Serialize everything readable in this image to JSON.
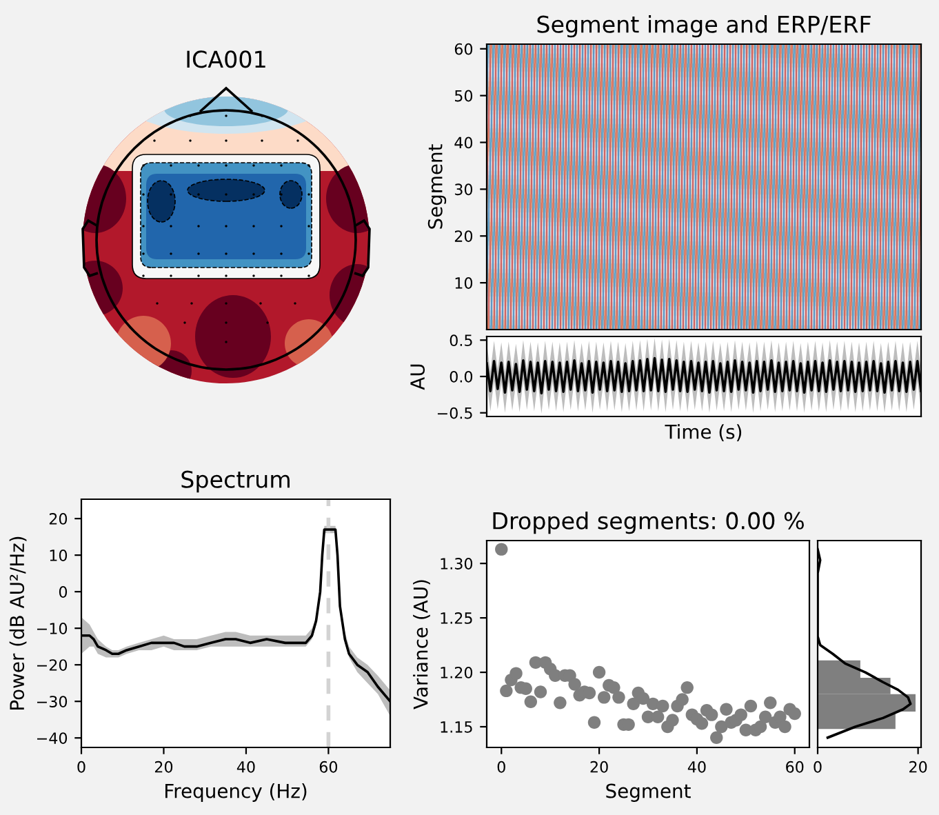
{
  "chart_data": [
    {
      "type": "other",
      "title": "ICA001"
    },
    {
      "type": "heatmap",
      "title": "Segment image and ERP/ERF",
      "ylabel": "Segment",
      "categories": [
        null
      ],
      "ylim": [
        0,
        61
      ],
      "yticks": [
        10,
        20,
        30,
        40,
        50,
        60
      ],
      "tick_labels": "y"
    },
    {
      "type": "line",
      "xlabel": "Time (s)",
      "ylabel": "AU",
      "tick_labels": "y",
      "categories": [
        null,
        null,
        null,
        null,
        null,
        null,
        null,
        null,
        null,
        null,
        null,
        null,
        null,
        null,
        null,
        null,
        null,
        null,
        null,
        null,
        null,
        null,
        null,
        null,
        null,
        null,
        null,
        null,
        null,
        null,
        null,
        null,
        null,
        null,
        null,
        null,
        null,
        null,
        null,
        null,
        null,
        null,
        null,
        null,
        null,
        null,
        null,
        null,
        null,
        null,
        null,
        null,
        null,
        null,
        null,
        null,
        null,
        null,
        null,
        null,
        null,
        null,
        null,
        null,
        null,
        null,
        null,
        null,
        null,
        null,
        null,
        null,
        null,
        null,
        null,
        null,
        null,
        null,
        null,
        null,
        null,
        null,
        null,
        null,
        null,
        null,
        null,
        null,
        null,
        null,
        null,
        null,
        null,
        null,
        null,
        null,
        null,
        null,
        null,
        null,
        null,
        null,
        null,
        null,
        null,
        null,
        null,
        null,
        null,
        null,
        null,
        null,
        null,
        null,
        null,
        null,
        null,
        null,
        null,
        null
      ],
      "ylim": [
        -0.55,
        0.55
      ],
      "yticks": [
        {
          "value": -0.5,
          "label": "−0.5"
        },
        {
          "value": 0,
          "label": "0.0"
        },
        0.5
      ],
      "series": [
        {
          "color": "#000000",
          "values": [
            0.18,
            -0.2,
            0.21,
            -0.17,
            0.19,
            -0.22,
            0.2,
            -0.19,
            0.17,
            -0.21,
            0.22,
            -0.18,
            0.2,
            -0.2,
            0.19,
            -0.23,
            0.21,
            -0.18,
            0.2,
            -0.2,
            0.19,
            -0.21,
            0.2,
            -0.18,
            0.22,
            -0.2,
            0.18,
            -0.19,
            0.21,
            -0.22,
            0.2,
            -0.18,
            0.19,
            -0.2,
            0.21,
            -0.19,
            0.2,
            -0.21,
            0.18,
            -0.2,
            0.21,
            -0.19,
            0.22,
            -0.2,
            0.24,
            -0.19,
            0.25,
            -0.2,
            0.23,
            -0.21,
            0.24,
            -0.18,
            0.22,
            -0.2,
            0.2,
            -0.21,
            0.21,
            -0.18,
            0.19,
            -0.2,
            0.2,
            -0.22,
            0.21,
            -0.19,
            0.18,
            -0.2,
            0.2,
            -0.21,
            0.22,
            -0.18,
            0.2,
            -0.19,
            0.19,
            -0.22,
            0.21,
            -0.2,
            0.2,
            -0.18,
            0.22,
            -0.21,
            0.19,
            -0.2,
            0.2,
            -0.19,
            0.21,
            -0.2,
            0.18,
            -0.22,
            0.2,
            -0.19,
            0.21,
            -0.2,
            0.19,
            -0.21,
            0.22,
            -0.18,
            0.2,
            -0.2,
            0.21,
            -0.19,
            0.2,
            -0.21,
            0.19,
            -0.2,
            0.2,
            -0.19,
            0.21,
            -0.2,
            0.18,
            -0.22,
            0.2,
            -0.19,
            0.21,
            -0.2,
            0.19,
            -0.21,
            0.2,
            -0.18,
            0.21,
            -0.2
          ],
          "upper": [
            0.46,
            0.07,
            0.49,
            0.1,
            0.47,
            0.05,
            0.48,
            0.08,
            0.45,
            0.06,
            0.5,
            0.09,
            0.48,
            0.07,
            0.47,
            0.04,
            0.49,
            0.09,
            0.48,
            0.07,
            0.47,
            0.06,
            0.48,
            0.09,
            0.5,
            0.07,
            0.46,
            0.08,
            0.49,
            0.05,
            0.48,
            0.09,
            0.47,
            0.07,
            0.49,
            0.08,
            0.48,
            0.06,
            0.46,
            0.07,
            0.49,
            0.08,
            0.5,
            0.07,
            0.52,
            0.08,
            0.53,
            0.07,
            0.51,
            0.06,
            0.52,
            0.09,
            0.5,
            0.07,
            0.48,
            0.06,
            0.49,
            0.09,
            0.47,
            0.07,
            0.48,
            0.05,
            0.49,
            0.08,
            0.46,
            0.07,
            0.48,
            0.06,
            0.5,
            0.09,
            0.48,
            0.08,
            0.47,
            0.05,
            0.49,
            0.07,
            0.48,
            0.09,
            0.5,
            0.06,
            0.47,
            0.07,
            0.48,
            0.08,
            0.49,
            0.07,
            0.46,
            0.05,
            0.48,
            0.08,
            0.49,
            0.07,
            0.47,
            0.06,
            0.5,
            0.09,
            0.48,
            0.07,
            0.49,
            0.08,
            0.48,
            0.06,
            0.47,
            0.07,
            0.48,
            0.08,
            0.49,
            0.07,
            0.46,
            0.05,
            0.48,
            0.08,
            0.49,
            0.07,
            0.47,
            0.06,
            0.48,
            0.09,
            0.49,
            0.07
          ],
          "lower": [
            -0.09,
            -0.48,
            -0.06,
            -0.45,
            -0.08,
            -0.5,
            -0.07,
            -0.47,
            -0.1,
            -0.49,
            -0.05,
            -0.46,
            -0.07,
            -0.48,
            -0.08,
            -0.51,
            -0.06,
            -0.46,
            -0.07,
            -0.48,
            -0.08,
            -0.49,
            -0.07,
            -0.46,
            -0.05,
            -0.48,
            -0.09,
            -0.47,
            -0.06,
            -0.5,
            -0.07,
            -0.46,
            -0.08,
            -0.48,
            -0.06,
            -0.47,
            -0.07,
            -0.49,
            -0.09,
            -0.48,
            -0.06,
            -0.47,
            -0.05,
            -0.48,
            -0.03,
            -0.47,
            -0.02,
            -0.48,
            -0.04,
            -0.49,
            -0.03,
            -0.46,
            -0.05,
            -0.48,
            -0.07,
            -0.49,
            -0.06,
            -0.46,
            -0.08,
            -0.48,
            -0.07,
            -0.5,
            -0.06,
            -0.47,
            -0.09,
            -0.48,
            -0.07,
            -0.49,
            -0.05,
            -0.46,
            -0.07,
            -0.47,
            -0.08,
            -0.5,
            -0.06,
            -0.48,
            -0.07,
            -0.46,
            -0.05,
            -0.49,
            -0.08,
            -0.48,
            -0.07,
            -0.47,
            -0.06,
            -0.48,
            -0.09,
            -0.5,
            -0.07,
            -0.47,
            -0.06,
            -0.48,
            -0.08,
            -0.49,
            -0.05,
            -0.46,
            -0.07,
            -0.48,
            -0.06,
            -0.47,
            -0.07,
            -0.49,
            -0.08,
            -0.48,
            -0.07,
            -0.47,
            -0.06,
            -0.48,
            -0.09,
            -0.5,
            -0.07,
            -0.47,
            -0.06,
            -0.48,
            -0.08,
            -0.49,
            -0.07,
            -0.46,
            -0.06,
            -0.48
          ]
        }
      ]
    },
    {
      "type": "line",
      "title": "Spectrum",
      "xlabel": "Frequency (Hz)",
      "ylabel": "Power (dB AU²/Hz)",
      "xlim": [
        0,
        75
      ],
      "xticks": [
        0,
        20,
        40,
        60
      ],
      "ylim": [
        -42.6,
        25.3
      ],
      "yticks": [
        {
          "value": -40,
          "label": "−40"
        },
        {
          "value": -30,
          "label": "−30"
        },
        {
          "value": -20,
          "label": "−20"
        },
        {
          "value": -10,
          "label": "−10"
        },
        0,
        10,
        20
      ],
      "series": [
        {
          "color": "#000000",
          "x": [
            0,
            2,
            3,
            4,
            6,
            7.5,
            9,
            11,
            14,
            17,
            20,
            22.5,
            25,
            28,
            31.5,
            35,
            37.5,
            41,
            45,
            49.5,
            52.5,
            54.5,
            56,
            57,
            58,
            58.5,
            59,
            61.7,
            62.2,
            62.8,
            64,
            65,
            67,
            69.5,
            72,
            75
          ],
          "values": [
            -12,
            -12,
            -13,
            -15,
            -16,
            -17,
            -17,
            -16,
            -15,
            -14,
            -14,
            -14,
            -15,
            -15,
            -14,
            -13,
            -13,
            -14,
            -13,
            -14,
            -14,
            -14,
            -12,
            -8,
            0,
            10,
            17,
            17,
            10,
            -4,
            -13,
            -17,
            -20,
            -22,
            -26,
            -30
          ],
          "upper": [
            -7,
            -9,
            -11,
            -13,
            -15,
            -16,
            -16,
            -15,
            -14,
            -13,
            -12,
            -13,
            -13,
            -13,
            -12,
            -11,
            -11,
            -12,
            -12,
            -12,
            -12,
            -12,
            -10,
            -7,
            1,
            11,
            18,
            18,
            11,
            -3,
            -11,
            -15,
            -18,
            -20,
            -23,
            -27
          ],
          "lower": [
            -17,
            -15,
            -15,
            -17,
            -18,
            -18,
            -18,
            -17,
            -16,
            -16,
            -15,
            -16,
            -16,
            -16,
            -15,
            -15,
            -15,
            -15,
            -15,
            -15,
            -15,
            -15,
            -13,
            -9,
            -1,
            9,
            16,
            16,
            9,
            -5,
            -14,
            -18,
            -22,
            -25,
            -28,
            -34
          ]
        }
      ],
      "ref_lines": [
        {
          "axis": "x",
          "value": 60,
          "color": "#d3d3d3",
          "line_style": "dashed"
        }
      ]
    },
    {
      "type": "scatter",
      "title": "Dropped segments: 0.00 %",
      "xlabel": "Segment",
      "ylabel": "Variance (AU)",
      "color": "#7f7f7f",
      "marker": "circle",
      "x": [
        0,
        1,
        2,
        3,
        4,
        5,
        6,
        7,
        8,
        9,
        10,
        11,
        12,
        13,
        14,
        15,
        16,
        17,
        18,
        19,
        20,
        21,
        22,
        23,
        24,
        25,
        26,
        27,
        28,
        29,
        30,
        31,
        32,
        33,
        34,
        35,
        36,
        37,
        38,
        39,
        40,
        41,
        42,
        43,
        44,
        45,
        46,
        47,
        48,
        49,
        50,
        51,
        52,
        53,
        54,
        55,
        56,
        57,
        58,
        59,
        60
      ],
      "values": [
        1.313,
        1.183,
        1.193,
        1.199,
        1.186,
        1.185,
        1.173,
        1.209,
        1.182,
        1.209,
        1.203,
        1.197,
        1.172,
        1.197,
        1.197,
        1.189,
        1.179,
        1.182,
        1.181,
        1.154,
        1.2,
        1.177,
        1.188,
        1.186,
        1.177,
        1.152,
        1.152,
        1.171,
        1.181,
        1.176,
        1.159,
        1.171,
        1.159,
        1.169,
        1.15,
        1.156,
        1.169,
        1.175,
        1.186,
        1.161,
        1.157,
        1.153,
        1.165,
        1.161,
        1.14,
        1.15,
        1.166,
        1.154,
        1.156,
        1.161,
        1.147,
        1.169,
        1.147,
        1.15,
        1.159,
        1.172,
        1.154,
        1.159,
        1.15,
        1.166,
        1.162
      ],
      "xlim": [
        -3,
        63
      ],
      "xticks": [
        0,
        20,
        40,
        60
      ],
      "ylim": [
        1.131,
        1.321
      ],
      "yticks": [
        1.15,
        {
          "value": 1.2,
          "label": "1.20"
        },
        1.25,
        {
          "value": 1.3,
          "label": "1.30"
        }
      ]
    },
    {
      "type": "histogram",
      "orientation": "horizontal",
      "color": "#7f7f7f",
      "bins": [
        1.148,
        1.164,
        1.18,
        1.195,
        1.211
      ],
      "values": [
        15.5,
        19.5,
        14.5,
        8.5
      ],
      "xlim": [
        0,
        20.6
      ],
      "xticks": [
        0,
        20
      ],
      "ylim": [
        1.131,
        1.321
      ],
      "tick_labels": "x",
      "series": [
        {
          "type": "line",
          "color": "#000000",
          "x": [
            1.14,
            1.15,
            1.158,
            1.166,
            1.171,
            1.177,
            1.184,
            1.191,
            1.2,
            1.208,
            1.217,
            1.225,
            1.233,
            1.274,
            1.291,
            1.303,
            1.313
          ],
          "values": [
            2,
            7.5,
            13,
            17,
            18.5,
            18,
            16,
            13,
            9.5,
            5.5,
            3,
            0.5,
            0,
            0,
            0,
            0.5,
            0
          ]
        }
      ]
    }
  ]
}
